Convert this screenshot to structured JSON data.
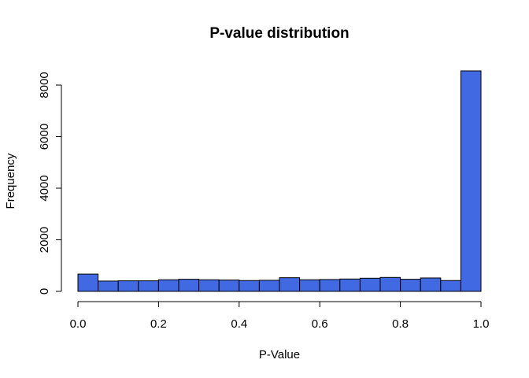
{
  "chart_data": {
    "type": "bar",
    "title": "P-value distribution",
    "xlabel": "P-Value",
    "ylabel": "Frequency",
    "xlim": [
      0,
      1
    ],
    "ylim": [
      0,
      8000
    ],
    "bin_width": 0.05,
    "bin_edges": [
      0.0,
      0.05,
      0.1,
      0.15,
      0.2,
      0.25,
      0.3,
      0.35,
      0.4,
      0.45,
      0.5,
      0.55,
      0.6,
      0.65,
      0.7,
      0.75,
      0.8,
      0.85,
      0.9,
      0.95,
      1.0
    ],
    "values": [
      670,
      400,
      410,
      410,
      450,
      470,
      450,
      440,
      420,
      430,
      530,
      450,
      460,
      480,
      510,
      540,
      470,
      520,
      420,
      8550
    ],
    "x_ticks": [
      "0.0",
      "0.2",
      "0.4",
      "0.6",
      "0.8",
      "1.0"
    ],
    "y_ticks": [
      "0",
      "2000",
      "4000",
      "6000",
      "8000"
    ],
    "bar_color": "#4169E1",
    "grid": false,
    "legend": "none"
  }
}
